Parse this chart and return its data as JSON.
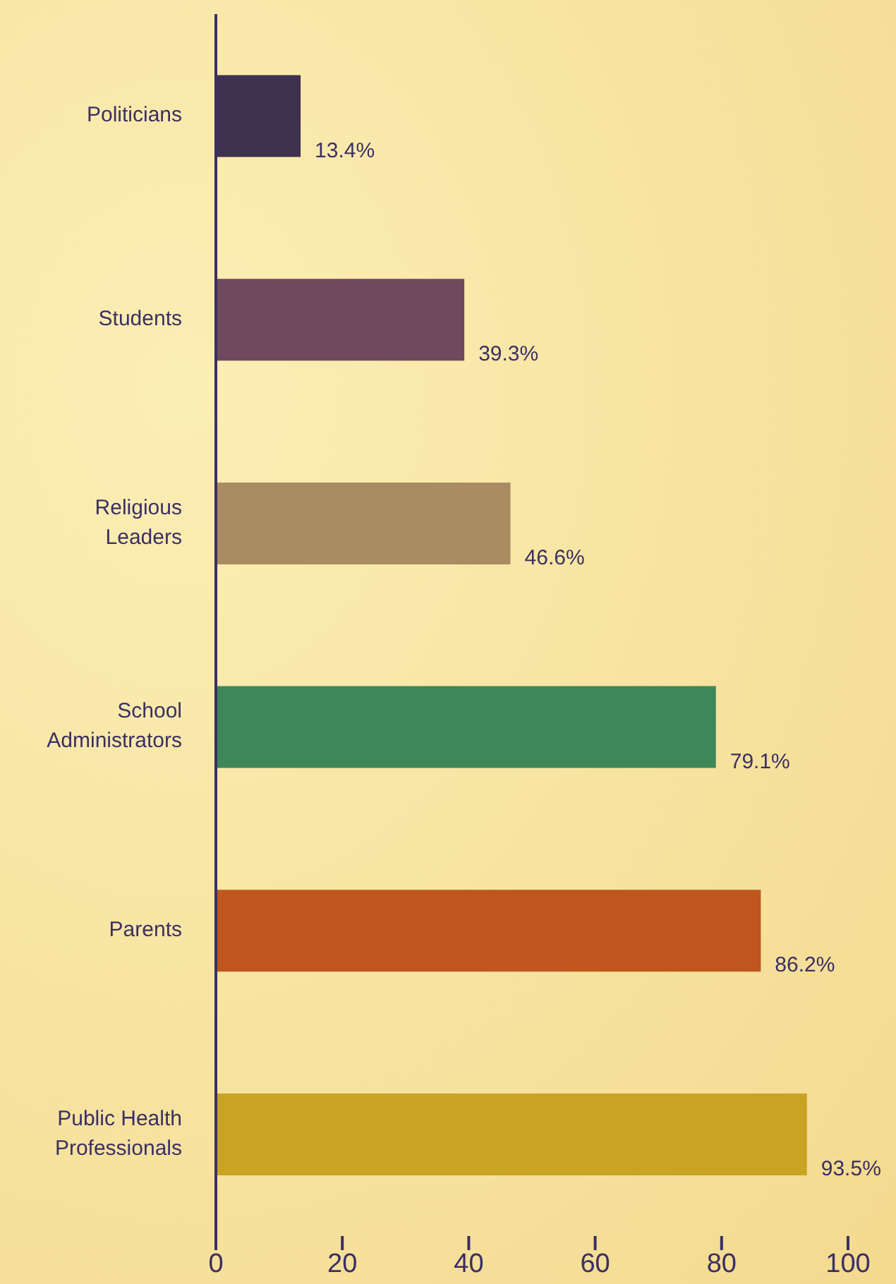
{
  "chart_data": {
    "type": "bar",
    "orientation": "horizontal",
    "categories": [
      "Politicians",
      "Students",
      "Religious Leaders",
      "School Administrators",
      "Parents",
      "Public Health Professionals"
    ],
    "values": [
      13.4,
      39.3,
      46.6,
      79.1,
      86.2,
      93.5
    ],
    "colors": [
      "#3e3150",
      "#6f4a5e",
      "#a98c62",
      "#3d8759",
      "#bf561f",
      "#c8a324"
    ],
    "value_labels": [
      "13.4%",
      "39.3%",
      "46.6%",
      "79.1%",
      "86.2%",
      "93.5%"
    ],
    "xlim": [
      0,
      100
    ],
    "xticks": [
      0,
      20,
      40,
      60,
      80,
      100
    ],
    "grid": false
  }
}
